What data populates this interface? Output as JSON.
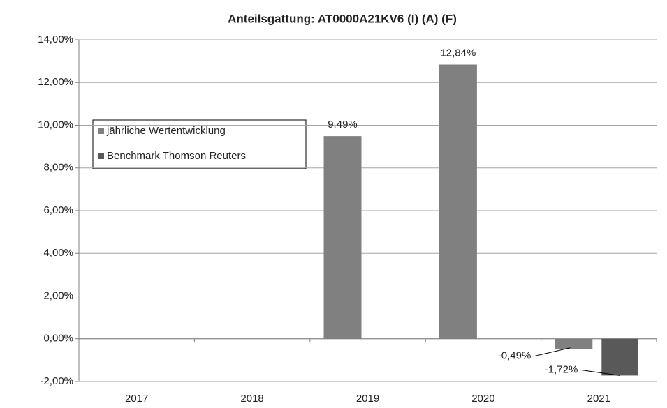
{
  "chart_data": {
    "type": "bar",
    "title": "Anteilsgattung: AT0000A21KV6 (I) (A) (F)",
    "categories": [
      "2017",
      "2018",
      "2019",
      "2020",
      "2021"
    ],
    "series": [
      {
        "name": "jährliche Wertentwicklung",
        "color": "#808080",
        "values": [
          null,
          null,
          9.49,
          12.84,
          -0.49
        ],
        "value_labels": [
          null,
          null,
          "9,49%",
          "12,84%",
          "-0,49%"
        ]
      },
      {
        "name": "Benchmark Thomson Reuters",
        "color": "#595959",
        "values": [
          null,
          null,
          null,
          null,
          -1.72
        ],
        "value_labels": [
          null,
          null,
          null,
          null,
          "-1,72%"
        ]
      }
    ],
    "ylim": [
      -2,
      14
    ],
    "yticks": [
      {
        "value": -2,
        "label": "-2,00%"
      },
      {
        "value": 0,
        "label": "0,00%"
      },
      {
        "value": 2,
        "label": "2,00%"
      },
      {
        "value": 4,
        "label": "4,00%"
      },
      {
        "value": 6,
        "label": "6,00%"
      },
      {
        "value": 8,
        "label": "8,00%"
      },
      {
        "value": 10,
        "label": "10,00%"
      },
      {
        "value": 12,
        "label": "12,00%"
      },
      {
        "value": 14,
        "label": "14,00%"
      }
    ],
    "grid": true
  }
}
